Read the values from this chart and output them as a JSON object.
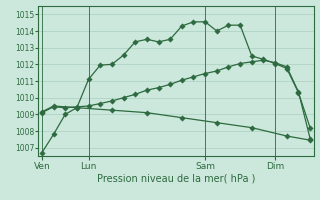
{
  "title": "Pression niveau de la mer( hPa )",
  "bg_color": "#cce8dc",
  "grid_color": "#aacfc0",
  "line_color": "#2d6a3f",
  "ylim": [
    1006.5,
    1015.5
  ],
  "yticks": [
    1007,
    1008,
    1009,
    1010,
    1011,
    1012,
    1013,
    1014,
    1015
  ],
  "xtick_labels": [
    "Ven",
    "Lun",
    "Sam",
    "Dim"
  ],
  "xtick_positions": [
    0,
    4,
    14,
    20
  ],
  "vline_positions": [
    0,
    4,
    14,
    20
  ],
  "xlim": [
    -0.3,
    23.3
  ],
  "line1_x": [
    0,
    1,
    2,
    3,
    4,
    5,
    6,
    7,
    8,
    9,
    10,
    11,
    12,
    13,
    14,
    15,
    16,
    17,
    18,
    19,
    20,
    21,
    22,
    23
  ],
  "line1_y": [
    1006.7,
    1007.8,
    1009.0,
    1009.4,
    1011.1,
    1011.95,
    1012.0,
    1012.55,
    1013.35,
    1013.5,
    1013.35,
    1013.5,
    1014.3,
    1014.55,
    1014.55,
    1014.0,
    1014.35,
    1014.35,
    1012.5,
    1012.3,
    1012.05,
    1011.75,
    1010.3,
    1008.2
  ],
  "line2_x": [
    0,
    1,
    2,
    3,
    4,
    5,
    6,
    7,
    8,
    9,
    10,
    11,
    12,
    13,
    14,
    15,
    16,
    17,
    18,
    19,
    20,
    21,
    22,
    23
  ],
  "line2_y": [
    1009.1,
    1009.45,
    1009.4,
    1009.45,
    1009.5,
    1009.65,
    1009.8,
    1010.0,
    1010.2,
    1010.45,
    1010.6,
    1010.8,
    1011.05,
    1011.25,
    1011.45,
    1011.6,
    1011.85,
    1012.05,
    1012.15,
    1012.25,
    1012.1,
    1011.85,
    1010.35,
    1007.55
  ],
  "line3_x": [
    0,
    1,
    3,
    6,
    9,
    12,
    15,
    18,
    21,
    23
  ],
  "line3_y": [
    1009.15,
    1009.5,
    1009.4,
    1009.25,
    1009.1,
    1008.8,
    1008.5,
    1008.2,
    1007.7,
    1007.45
  ]
}
